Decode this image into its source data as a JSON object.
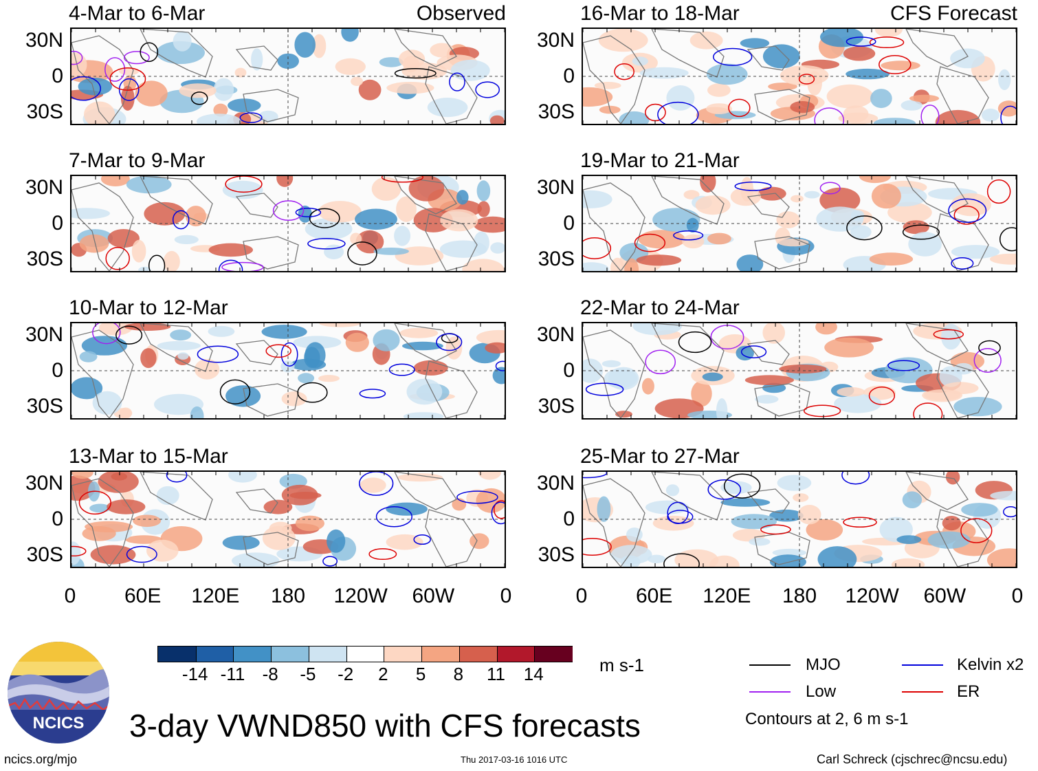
{
  "panels_left": [
    {
      "title": "4-Mar to 6-Mar",
      "label": "Observed"
    },
    {
      "title": "7-Mar to 9-Mar",
      "label": ""
    },
    {
      "title": "10-Mar to 12-Mar",
      "label": ""
    },
    {
      "title": "13-Mar to 15-Mar",
      "label": ""
    }
  ],
  "panels_right": [
    {
      "title": "16-Mar to 18-Mar",
      "label": "CFS Forecast"
    },
    {
      "title": "19-Mar to 21-Mar",
      "label": ""
    },
    {
      "title": "22-Mar to 24-Mar",
      "label": ""
    },
    {
      "title": "25-Mar to 27-Mar",
      "label": ""
    }
  ],
  "lat_labels": [
    "30N",
    "0",
    "30S"
  ],
  "lon_labels": [
    "0",
    "60E",
    "120E",
    "180",
    "120W",
    "60W",
    "0"
  ],
  "colorbar": {
    "ticks": [
      "-14",
      "-11",
      "-8",
      "-5",
      "-2",
      "2",
      "5",
      "8",
      "11",
      "14"
    ],
    "colors": [
      "#08306b",
      "#1f5fa6",
      "#4291c6",
      "#8cc0de",
      "#cfe4f2",
      "#ffffff",
      "#fdd7c3",
      "#f4a582",
      "#d6604d",
      "#b2182b",
      "#67001f"
    ],
    "units": "m s-1"
  },
  "legend": {
    "mjo": {
      "label": "MJO",
      "color": "#000000"
    },
    "kelvin": {
      "label": "Kelvin x2",
      "color": "#0000dd"
    },
    "low": {
      "label": "Low",
      "color": "#a020f0"
    },
    "er": {
      "label": "ER",
      "color": "#dd0000"
    },
    "note": "Contours at 2, 6 m s-1"
  },
  "logo": {
    "text": "NCICS"
  },
  "main_title": "3-day VWND850 with CFS forecasts",
  "footer": {
    "left": "ncics.org/mjo",
    "center": "Thu 2017-03-16 1016 UTC",
    "right": "Carl Schreck (cjschrec@ncsu.edu)"
  }
}
